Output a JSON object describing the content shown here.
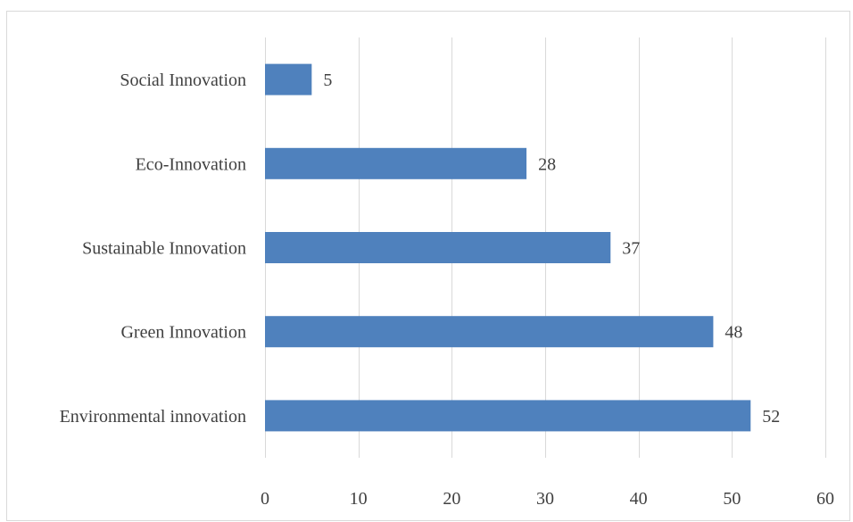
{
  "chart_data": {
    "type": "bar",
    "orientation": "horizontal",
    "categories": [
      "Social Innovation",
      "Eco-Innovation",
      "Sustainable Innovation",
      "Green Innovation",
      "Environmental innovation"
    ],
    "values": [
      5,
      28,
      37,
      48,
      52
    ],
    "xlim": [
      0,
      60
    ],
    "xticks": [
      0,
      10,
      20,
      30,
      40,
      50,
      60
    ],
    "grid": "vertical",
    "legend": "none",
    "title": "",
    "xlabel": "",
    "ylabel": "",
    "data_labels": true
  },
  "colors": {
    "bar": "#4f81bd",
    "grid": "#d9d9d9",
    "text": "#404040"
  }
}
